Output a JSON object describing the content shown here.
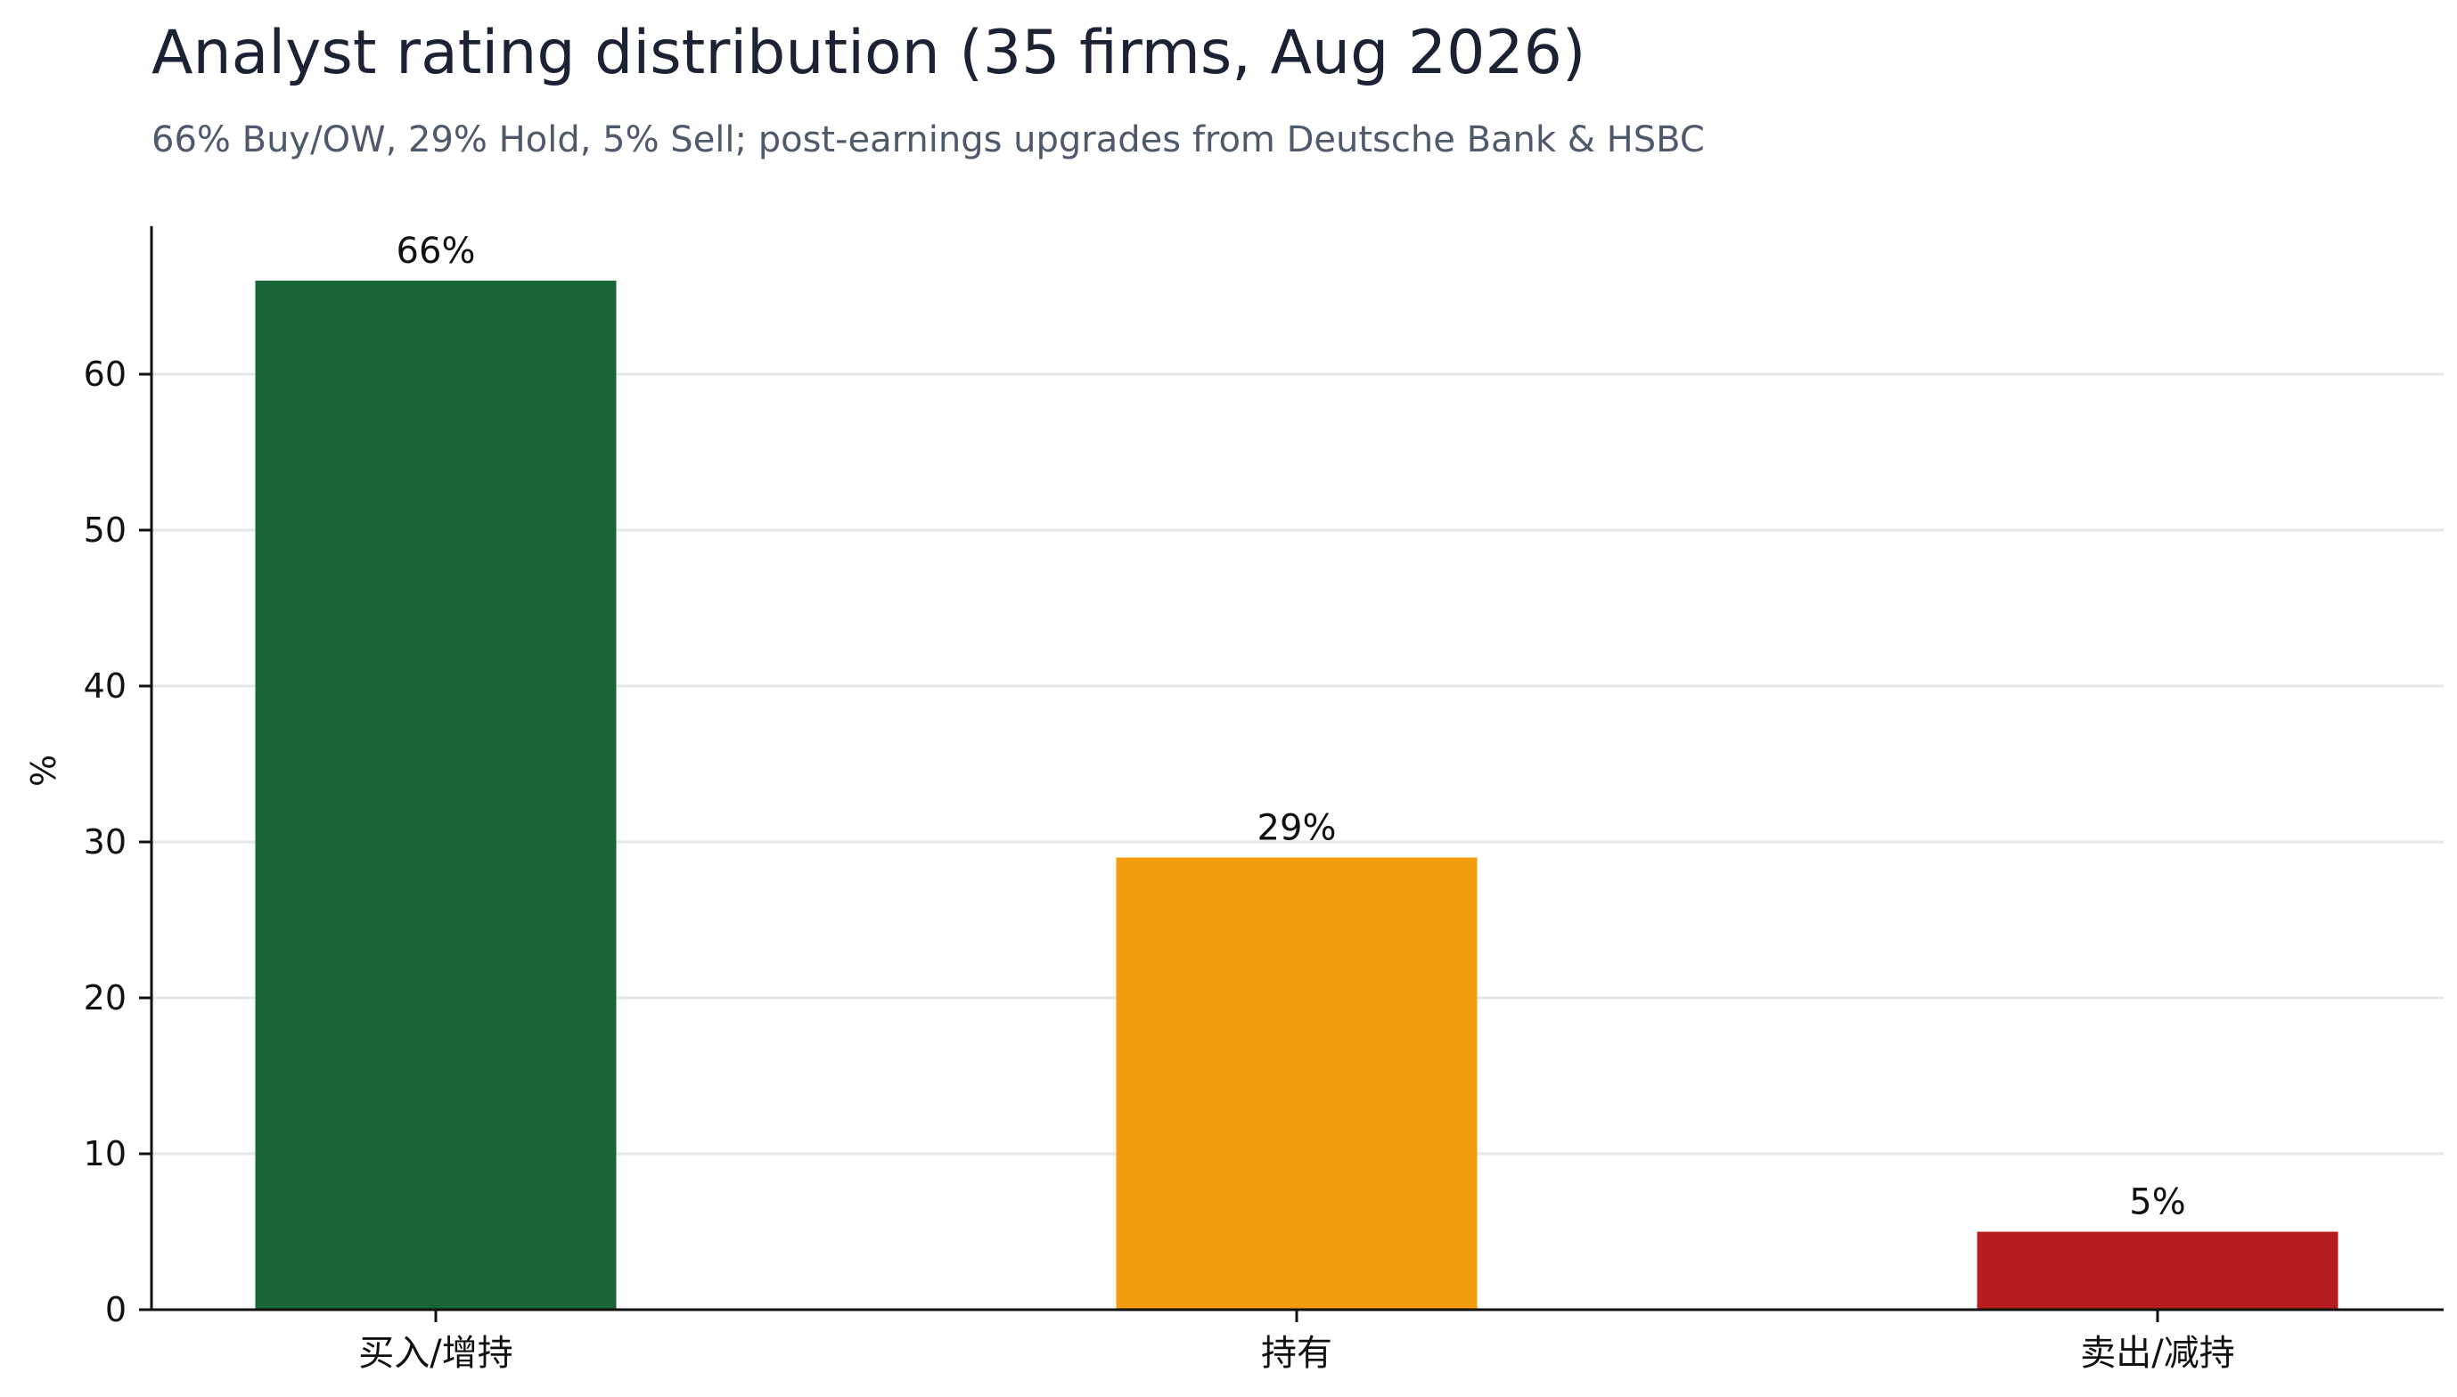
{
  "chart_data": {
    "type": "bar",
    "title": "Analyst rating distribution (35 firms, Aug 2026)",
    "subtitle": "66% Buy/OW, 29% Hold, 5% Sell; post-earnings upgrades from Deutsche Bank & HSBC",
    "categories": [
      "买入/增持",
      "持有",
      "卖出/减持"
    ],
    "values": [
      66,
      29,
      5
    ],
    "data_labels": [
      "66%",
      "29%",
      "5%"
    ],
    "colors": [
      "#186637",
      "#f39c0d",
      "#b71d1e"
    ],
    "xlabel": "",
    "ylabel": "%",
    "ylim": [
      0,
      69.5
    ],
    "yticks": [
      0,
      10,
      20,
      30,
      40,
      50,
      60
    ],
    "grid": "horizontal",
    "legend": "none"
  }
}
